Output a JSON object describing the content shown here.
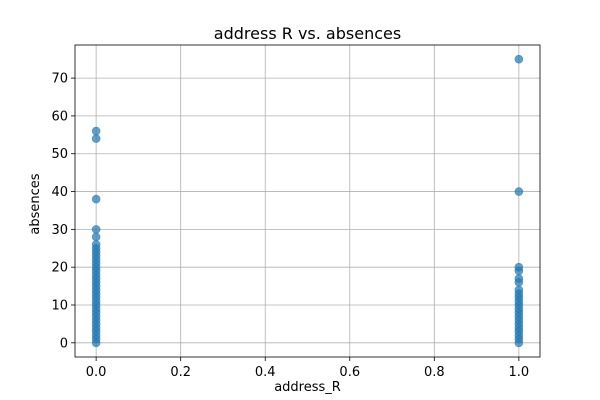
{
  "chart_data": {
    "type": "scatter",
    "title": "address R vs. absences",
    "xlabel": "address_R",
    "ylabel": "absences",
    "xlim": [
      -0.05,
      1.05
    ],
    "ylim": [
      -3.75,
      78.75
    ],
    "xticks": [
      0.0,
      0.2,
      0.4,
      0.6,
      0.8,
      1.0
    ],
    "xtick_labels": [
      "0.0",
      "0.2",
      "0.4",
      "0.6",
      "0.8",
      "1.0"
    ],
    "yticks": [
      0,
      10,
      20,
      30,
      40,
      50,
      60,
      70
    ],
    "ytick_labels": [
      "0",
      "10",
      "20",
      "30",
      "40",
      "50",
      "60",
      "70"
    ],
    "grid": true,
    "marker_color": "#1f77b4",
    "marker_alpha": 0.7,
    "series": [
      {
        "points": [
          {
            "x": 0,
            "y": 0
          },
          {
            "x": 0,
            "y": 1
          },
          {
            "x": 0,
            "y": 2
          },
          {
            "x": 0,
            "y": 3
          },
          {
            "x": 0,
            "y": 4
          },
          {
            "x": 0,
            "y": 5
          },
          {
            "x": 0,
            "y": 6
          },
          {
            "x": 0,
            "y": 7
          },
          {
            "x": 0,
            "y": 8
          },
          {
            "x": 0,
            "y": 9
          },
          {
            "x": 0,
            "y": 10
          },
          {
            "x": 0,
            "y": 11
          },
          {
            "x": 0,
            "y": 12
          },
          {
            "x": 0,
            "y": 13
          },
          {
            "x": 0,
            "y": 14
          },
          {
            "x": 0,
            "y": 15
          },
          {
            "x": 0,
            "y": 16
          },
          {
            "x": 0,
            "y": 17
          },
          {
            "x": 0,
            "y": 18
          },
          {
            "x": 0,
            "y": 19
          },
          {
            "x": 0,
            "y": 20
          },
          {
            "x": 0,
            "y": 21
          },
          {
            "x": 0,
            "y": 22
          },
          {
            "x": 0,
            "y": 23
          },
          {
            "x": 0,
            "y": 24
          },
          {
            "x": 0,
            "y": 25
          },
          {
            "x": 0,
            "y": 26
          },
          {
            "x": 0,
            "y": 28
          },
          {
            "x": 0,
            "y": 30
          },
          {
            "x": 0,
            "y": 38
          },
          {
            "x": 0,
            "y": 54
          },
          {
            "x": 0,
            "y": 56
          },
          {
            "x": 1,
            "y": 0
          },
          {
            "x": 1,
            "y": 1
          },
          {
            "x": 1,
            "y": 2
          },
          {
            "x": 1,
            "y": 3
          },
          {
            "x": 1,
            "y": 4
          },
          {
            "x": 1,
            "y": 5
          },
          {
            "x": 1,
            "y": 6
          },
          {
            "x": 1,
            "y": 7
          },
          {
            "x": 1,
            "y": 8
          },
          {
            "x": 1,
            "y": 9
          },
          {
            "x": 1,
            "y": 10
          },
          {
            "x": 1,
            "y": 11
          },
          {
            "x": 1,
            "y": 12
          },
          {
            "x": 1,
            "y": 13
          },
          {
            "x": 1,
            "y": 14
          },
          {
            "x": 1,
            "y": 16
          },
          {
            "x": 1,
            "y": 17
          },
          {
            "x": 1,
            "y": 19
          },
          {
            "x": 1,
            "y": 20
          },
          {
            "x": 1,
            "y": 40
          },
          {
            "x": 1,
            "y": 75
          }
        ]
      }
    ]
  }
}
